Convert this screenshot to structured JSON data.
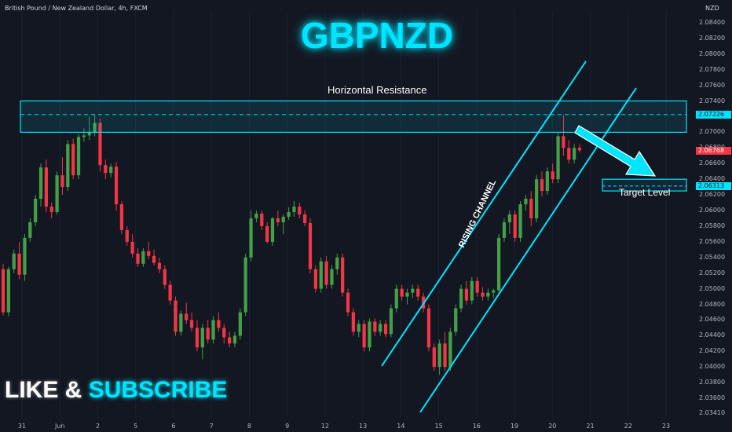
{
  "header": {
    "symbol_line": "British Pound / New Zealand Dollar, 4h, FXCM",
    "currency": "NZD"
  },
  "overlay": {
    "title": "GBPNZD",
    "like": "LIKE &",
    "subscribe": "SUBSCRIBE"
  },
  "chart_data": {
    "type": "candlestick",
    "y_ticks": [
      "2.08400",
      "2.08200",
      "2.08000",
      "2.07800",
      "2.07600",
      "2.07400",
      "2.07200",
      "2.07000",
      "2.06800",
      "2.06600",
      "2.06400",
      "2.06200",
      "2.06000",
      "2.05800",
      "2.05600",
      "2.05400",
      "2.05200",
      "2.05000",
      "2.04800",
      "2.04600",
      "2.04400",
      "2.04200",
      "2.04000",
      "2.03800",
      "2.03600",
      "2.03410"
    ],
    "y_ticks_values": [
      2.084,
      2.082,
      2.08,
      2.078,
      2.076,
      2.074,
      2.072,
      2.07,
      2.068,
      2.066,
      2.064,
      2.062,
      2.06,
      2.058,
      2.056,
      2.054,
      2.052,
      2.05,
      2.048,
      2.046,
      2.044,
      2.042,
      2.04,
      2.038,
      2.036,
      2.0341
    ],
    "ylim": [
      2.0335,
      2.0855
    ],
    "x_ticks": [
      "31",
      "Jun",
      "2",
      "5",
      "6",
      "7",
      "8",
      "9",
      "12",
      "13",
      "14",
      "15",
      "16",
      "19",
      "20",
      "21",
      "22",
      "23"
    ],
    "price_labels": [
      {
        "label": "2.07226",
        "value": 2.07226,
        "color": "#00e5ff"
      },
      {
        "label": "2.06768",
        "value": 2.06768,
        "color": "#f23645"
      },
      {
        "label": "2.06313",
        "value": 2.06313,
        "color": "#00e5ff"
      }
    ],
    "colors": {
      "up": "#43a047",
      "down": "#f23645",
      "accent": "#00e5ff"
    },
    "candles": [
      [
        2.0525,
        2.0532,
        2.0466,
        2.047
      ],
      [
        2.047,
        2.0528,
        2.0465,
        2.0525
      ],
      [
        2.0525,
        2.055,
        2.052,
        2.0545
      ],
      [
        2.0545,
        2.056,
        2.0512,
        2.0518
      ],
      [
        2.0518,
        2.057,
        2.051,
        2.0565
      ],
      [
        2.0565,
        2.059,
        2.056,
        2.0585
      ],
      [
        2.0585,
        2.062,
        2.058,
        2.0615
      ],
      [
        2.0615,
        2.066,
        2.0605,
        2.0655
      ],
      [
        2.0655,
        2.0665,
        2.0598,
        2.0605
      ],
      [
        2.0605,
        2.061,
        2.059,
        2.0598
      ],
      [
        2.0598,
        2.065,
        2.0595,
        2.0645
      ],
      [
        2.0645,
        2.0668,
        2.062,
        2.063
      ],
      [
        2.063,
        2.069,
        2.0625,
        2.0685
      ],
      [
        2.0685,
        2.0692,
        2.064,
        2.0645
      ],
      [
        2.0645,
        2.0698,
        2.064,
        2.0694
      ],
      [
        2.0694,
        2.0705,
        2.0688,
        2.0696
      ],
      [
        2.0696,
        2.072,
        2.069,
        2.07
      ],
      [
        2.07,
        2.0722,
        2.0695,
        2.0712
      ],
      [
        2.0712,
        2.0718,
        2.065,
        2.0658
      ],
      [
        2.0658,
        2.0665,
        2.064,
        2.0648
      ],
      [
        2.0648,
        2.066,
        2.0642,
        2.0656
      ],
      [
        2.0656,
        2.0662,
        2.06,
        2.0608
      ],
      [
        2.0608,
        2.0612,
        2.057,
        2.0575
      ],
      [
        2.0575,
        2.058,
        2.0555,
        2.056
      ],
      [
        2.056,
        2.057,
        2.054,
        2.0545
      ],
      [
        2.0545,
        2.0552,
        2.0528,
        2.0532
      ],
      [
        2.0532,
        2.0552,
        2.0528,
        2.0548
      ],
      [
        2.0548,
        2.056,
        2.0538,
        2.0542
      ],
      [
        2.0542,
        2.055,
        2.053,
        2.0533
      ],
      [
        2.0533,
        2.054,
        2.052,
        2.0525
      ],
      [
        2.0525,
        2.053,
        2.05,
        2.0505
      ],
      [
        2.0505,
        2.051,
        2.048,
        2.0485
      ],
      [
        2.0485,
        2.049,
        2.044,
        2.0445
      ],
      [
        2.0445,
        2.0472,
        2.044,
        2.0468
      ],
      [
        2.0468,
        2.0482,
        2.0455,
        2.046
      ],
      [
        2.046,
        2.047,
        2.0445,
        2.045
      ],
      [
        2.045,
        2.046,
        2.042,
        2.0425
      ],
      [
        2.0425,
        2.0455,
        2.041,
        2.045
      ],
      [
        2.045,
        2.046,
        2.043,
        2.0435
      ],
      [
        2.0435,
        2.0465,
        2.043,
        2.046
      ],
      [
        2.046,
        2.047,
        2.0445,
        2.045
      ],
      [
        2.045,
        2.0455,
        2.043,
        2.0438
      ],
      [
        2.0438,
        2.0445,
        2.0425,
        2.043
      ],
      [
        2.043,
        2.0445,
        2.0425,
        2.044
      ],
      [
        2.044,
        2.0475,
        2.0435,
        2.047
      ],
      [
        2.047,
        2.0545,
        2.0465,
        2.054
      ],
      [
        2.054,
        2.06,
        2.0535,
        2.059
      ],
      [
        2.059,
        2.06,
        2.0585,
        2.0596
      ],
      [
        2.0596,
        2.06,
        2.0575,
        2.058
      ],
      [
        2.058,
        2.0585,
        2.0558,
        2.056
      ],
      [
        2.056,
        2.0592,
        2.0555,
        2.059
      ],
      [
        2.059,
        2.06,
        2.058,
        2.0585
      ],
      [
        2.0585,
        2.0595,
        2.057,
        2.0592
      ],
      [
        2.0592,
        2.0604,
        2.0588,
        2.0598
      ],
      [
        2.0598,
        2.0612,
        2.0592,
        2.0605
      ],
      [
        2.0605,
        2.061,
        2.059,
        2.0595
      ],
      [
        2.0595,
        2.06,
        2.058,
        2.0584
      ],
      [
        2.0584,
        2.059,
        2.052,
        2.0525
      ],
      [
        2.0525,
        2.053,
        2.0495,
        2.05
      ],
      [
        2.05,
        2.054,
        2.0495,
        2.0535
      ],
      [
        2.0535,
        2.0542,
        2.05,
        2.0505
      ],
      [
        2.0505,
        2.053,
        2.05,
        2.0525
      ],
      [
        2.0525,
        2.0545,
        2.0518,
        2.054
      ],
      [
        2.054,
        2.0545,
        2.049,
        2.0495
      ],
      [
        2.0495,
        2.05,
        2.0465,
        2.047
      ],
      [
        2.047,
        2.0475,
        2.044,
        2.0445
      ],
      [
        2.0445,
        2.046,
        2.0438,
        2.0455
      ],
      [
        2.0455,
        2.046,
        2.042,
        2.0425
      ],
      [
        2.0425,
        2.0462,
        2.042,
        2.0458
      ],
      [
        2.0458,
        2.0462,
        2.044,
        2.0445
      ],
      [
        2.0445,
        2.046,
        2.044,
        2.0455
      ],
      [
        2.0455,
        2.046,
        2.0438,
        2.0442
      ],
      [
        2.0442,
        2.048,
        2.0438,
        2.0475
      ],
      [
        2.0475,
        2.0505,
        2.047,
        2.05
      ],
      [
        2.05,
        2.0505,
        2.0485,
        2.049
      ],
      [
        2.049,
        2.05,
        2.048,
        2.0495
      ],
      [
        2.0495,
        2.0505,
        2.0488,
        2.05
      ],
      [
        2.05,
        2.0505,
        2.0485,
        2.049
      ],
      [
        2.049,
        2.0495,
        2.047,
        2.0475
      ],
      [
        2.0475,
        2.048,
        2.042,
        2.0425
      ],
      [
        2.0425,
        2.043,
        2.0395,
        2.04
      ],
      [
        2.04,
        2.0435,
        2.039,
        2.043
      ],
      [
        2.043,
        2.0445,
        2.0395,
        2.04
      ],
      [
        2.04,
        2.045,
        2.0395,
        2.0445
      ],
      [
        2.0445,
        2.048,
        2.044,
        2.0475
      ],
      [
        2.0475,
        2.0505,
        2.047,
        2.05
      ],
      [
        2.05,
        2.051,
        2.048,
        2.0485
      ],
      [
        2.0485,
        2.0515,
        2.048,
        2.051
      ],
      [
        2.051,
        2.0515,
        2.049,
        2.0495
      ],
      [
        2.0495,
        2.0502,
        2.0485,
        2.049
      ],
      [
        2.049,
        2.05,
        2.0485,
        2.0495
      ],
      [
        2.0495,
        2.05,
        2.0488,
        2.0498
      ],
      [
        2.0498,
        2.057,
        2.0495,
        2.0565
      ],
      [
        2.0565,
        2.059,
        2.056,
        2.0585
      ],
      [
        2.0585,
        2.06,
        2.057,
        2.0595
      ],
      [
        2.0595,
        2.06,
        2.056,
        2.0565
      ],
      [
        2.0565,
        2.0612,
        2.056,
        2.0608
      ],
      [
        2.0608,
        2.062,
        2.06,
        2.0615
      ],
      [
        2.0615,
        2.0625,
        2.058,
        2.059
      ],
      [
        2.059,
        2.0645,
        2.0585,
        2.064
      ],
      [
        2.064,
        2.065,
        2.0618,
        2.0625
      ],
      [
        2.0625,
        2.0655,
        2.062,
        2.065
      ],
      [
        2.065,
        2.066,
        2.0635,
        2.064
      ],
      [
        2.064,
        2.07,
        2.0635,
        2.0695
      ],
      [
        2.0695,
        2.0722,
        2.067,
        2.068
      ],
      [
        2.068,
        2.069,
        2.066,
        2.0665
      ],
      [
        2.0665,
        2.0685,
        2.066,
        2.068
      ],
      [
        2.068,
        2.0685,
        2.0674,
        2.0677
      ]
    ],
    "annotations": {
      "resistance": "Horizontal Resistance",
      "channel": "RISING CHANNEL",
      "target": "Target Level"
    }
  }
}
